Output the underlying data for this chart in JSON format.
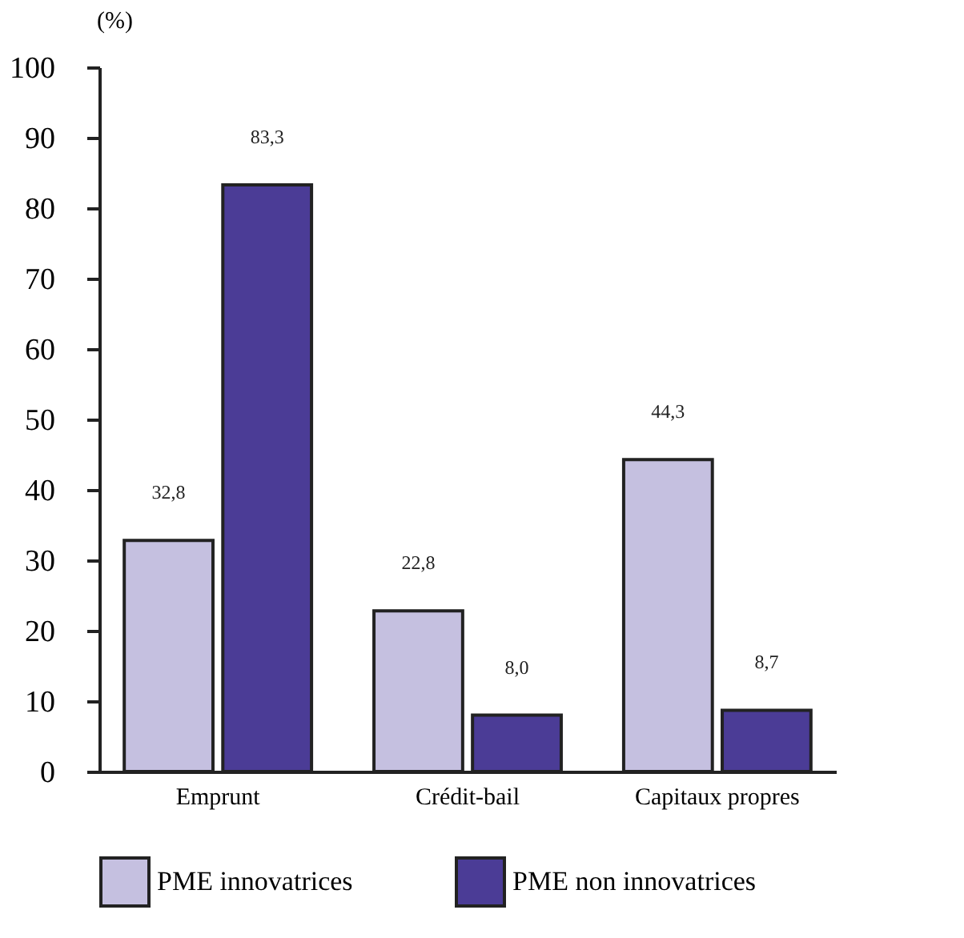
{
  "chart_data": {
    "type": "bar",
    "ylabel": "(%)",
    "categories": [
      "Emprunt",
      "Crédit-bail",
      "Capitaux propres"
    ],
    "series": [
      {
        "name": "PME innovatrices",
        "color": "#c5c0e0",
        "values": [
          32.8,
          22.8,
          44.3
        ],
        "value_labels": [
          "32,8",
          "22,8",
          "44,3"
        ]
      },
      {
        "name": "PME non innovatrices",
        "color": "#4b3c96",
        "values": [
          83.3,
          8.0,
          8.7
        ],
        "value_labels": [
          "83,3",
          "8,0",
          "8,7"
        ]
      }
    ],
    "ylim": [
      0,
      100
    ],
    "yticks": [
      0,
      10,
      20,
      30,
      40,
      50,
      60,
      70,
      80,
      90,
      100
    ],
    "grid": false,
    "legend": "bottom"
  }
}
